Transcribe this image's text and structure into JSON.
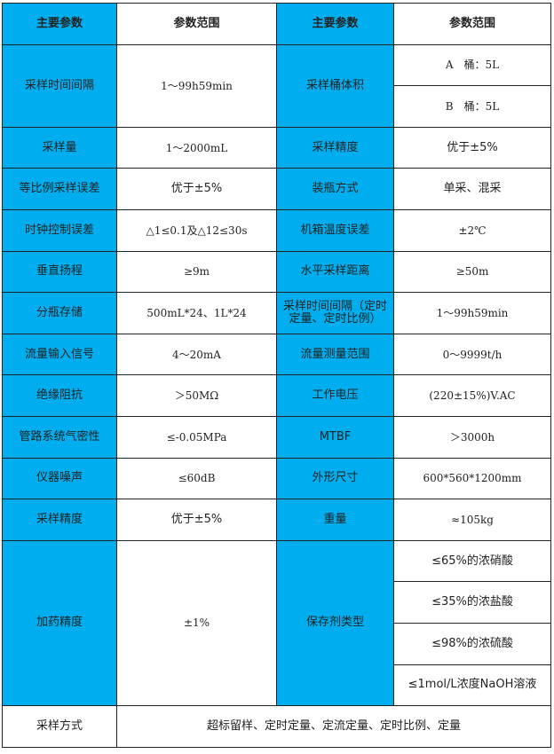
{
  "header": {
    "param": "主要参数",
    "range": "参数范围",
    "param2": "主要参数",
    "range2": "参数范围"
  },
  "colors": {
    "key_cell": "#00aeef",
    "value_cell": "#ffffff",
    "border": "#222222"
  },
  "rows": [
    {
      "k1": "采样时间间隔",
      "v1": "1～99h59min",
      "k2": "采样桶体积",
      "v2": [
        "A　桶：5L",
        "B　桶：5L"
      ]
    },
    {
      "k1": "采样量",
      "v1": "1～2000mL",
      "k2": "采样精度",
      "v2": "优于±5%"
    },
    {
      "k1": "等比例采样误差",
      "v1": "优于±5%",
      "k2": "装瓶方式",
      "v2": "单采、混采"
    },
    {
      "k1": "时钟控制误差",
      "v1": "△1≤0.1及△12≤30s",
      "k2": "机箱温度误差",
      "v2": "±2℃"
    },
    {
      "k1": "垂直扬程",
      "v1": "≥9m",
      "k2": "水平采样距离",
      "v2": "≥50m"
    },
    {
      "k1": "分瓶存储",
      "v1": "500mL*24、1L*24",
      "k2": "采样时间间隔（定时定量、定时比例）",
      "v2": "1～99h59min"
    },
    {
      "k1": "流量输入信号",
      "v1": "4～20mA",
      "k2": "流量测量范围",
      "v2": "0～9999t/h"
    },
    {
      "k1": "绝缘阻抗",
      "v1": "＞50MΩ",
      "k2": "工作电压",
      "v2": "(220±15%)V.AC"
    },
    {
      "k1": "管路系统气密性",
      "v1": "≤-0.05MPa",
      "k2": "MTBF",
      "v2": "＞3000h"
    },
    {
      "k1": "仪器噪声",
      "v1": "≤60dB",
      "k2": "外形尺寸",
      "v2": "600*560*1200mm"
    },
    {
      "k1": "采样精度",
      "v1": "优于±5%",
      "k2": "重量",
      "v2": "≈105kg"
    },
    {
      "k1": "加药精度",
      "v1": "±1%",
      "k2": "保存剂类型",
      "v2": [
        "≤65%的浓硝酸",
        "≤35%的浓盐酸",
        "≤98%的浓硫酸",
        "≤1mol/L浓度NaOH溶液"
      ]
    }
  ],
  "footer": {
    "k": "采样方式",
    "v": "超标留样、定时定量、定流定量、定时比例、定量"
  }
}
